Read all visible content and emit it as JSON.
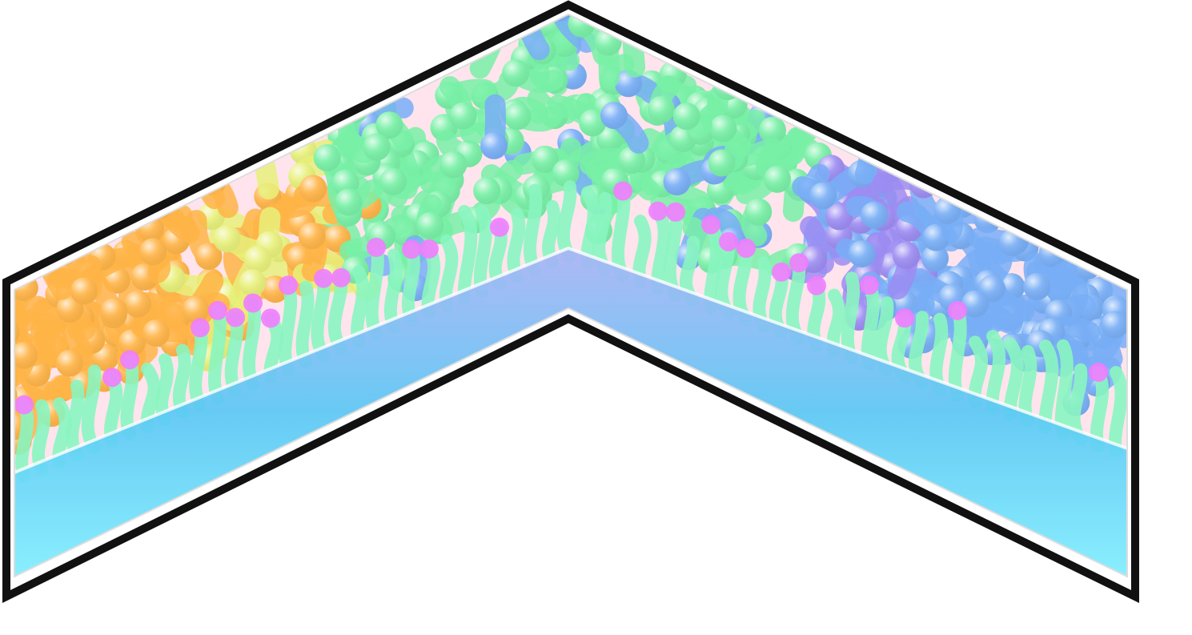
{
  "illustration": {
    "description_visible_text": "",
    "palette": {
      "frame": "#111111",
      "background": "#ffffff",
      "substrate_light": "#7ff0ff",
      "substrate_mid": "#5ac8f5",
      "substrate_top": "#a9b4f6",
      "tail": "#8af5c0",
      "head_pink": "#f27cff",
      "cluster_orange": "#ffb447",
      "cluster_yellow": "#e8f07a",
      "cluster_green": "#78f0a6",
      "cluster_blue": "#78aef6",
      "cluster_purple": "#9c8cf2",
      "backdrop_pink": "#ffb2cc"
    }
  }
}
